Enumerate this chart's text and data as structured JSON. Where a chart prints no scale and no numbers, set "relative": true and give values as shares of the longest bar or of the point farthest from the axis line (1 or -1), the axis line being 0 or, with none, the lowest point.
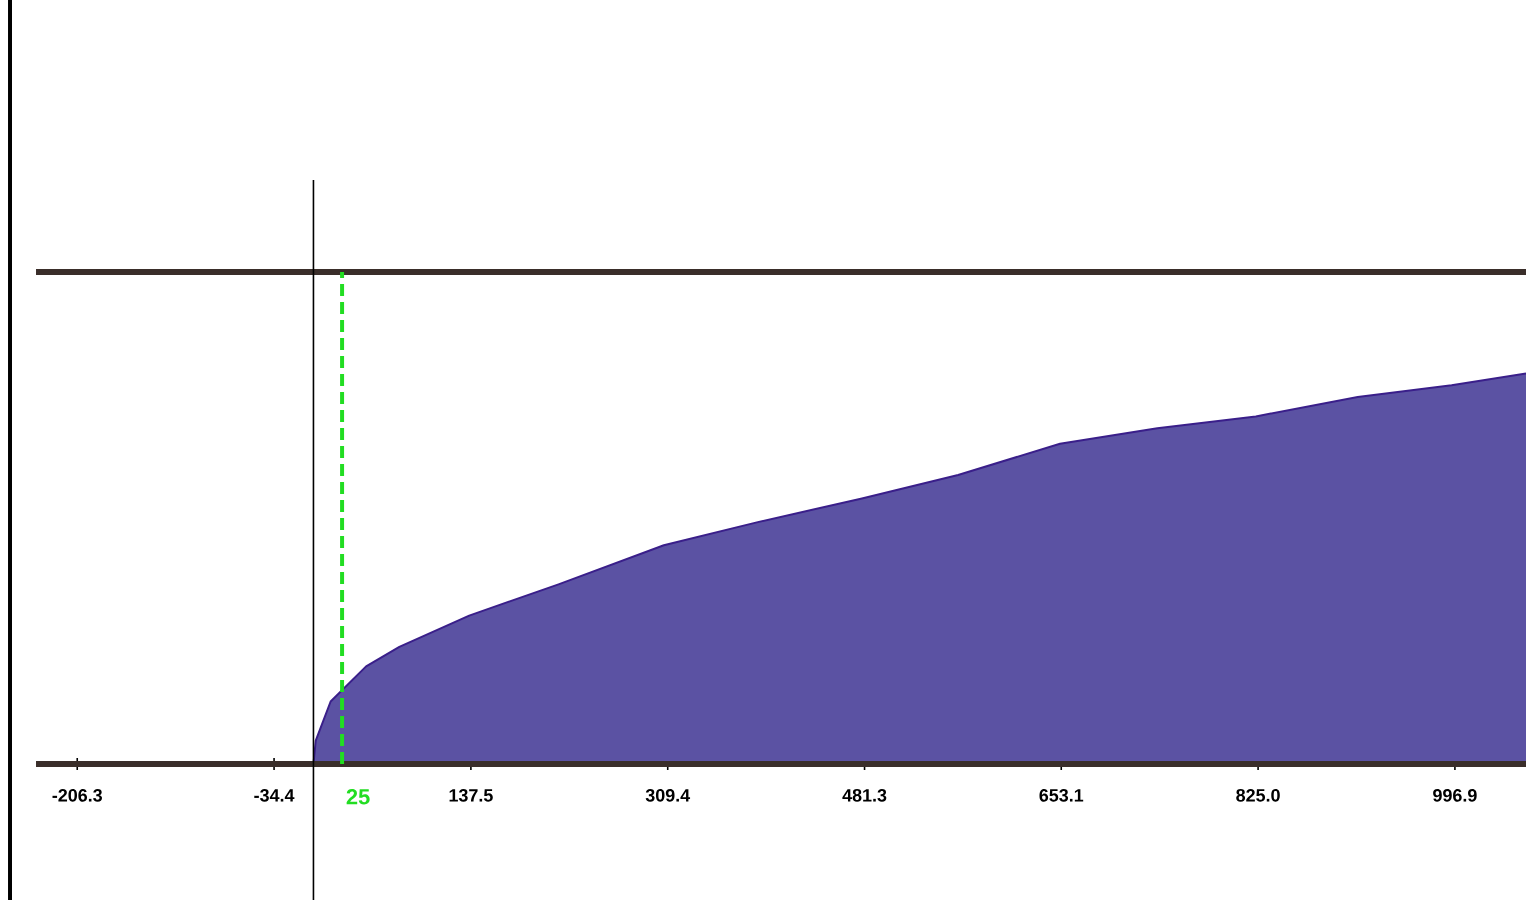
{
  "chart_data": {
    "type": "area",
    "relative": true,
    "x": [
      0,
      2,
      15,
      46,
      75,
      136,
      214,
      306,
      389,
      479,
      563,
      652,
      737,
      823,
      912,
      994,
      1059
    ],
    "values": [
      0,
      0.06,
      0.16,
      0.25,
      0.3,
      0.38,
      0.46,
      0.56,
      0.62,
      0.68,
      0.74,
      0.82,
      0.86,
      0.89,
      0.94,
      0.97,
      1
    ],
    "color": "#5b52a3",
    "xlim": [
      -242.3,
      1059
    ],
    "xticks": [
      -206.3,
      -34.4,
      137.5,
      309.4,
      481.3,
      653.1,
      {
        "value": 825,
        "label": "825.0"
      },
      996.9
    ],
    "ref_lines": [
      {
        "axis": "x",
        "value": 25,
        "label": "25",
        "color": "#22dd22",
        "line_style": "dashed"
      }
    ],
    "grid": false
  }
}
